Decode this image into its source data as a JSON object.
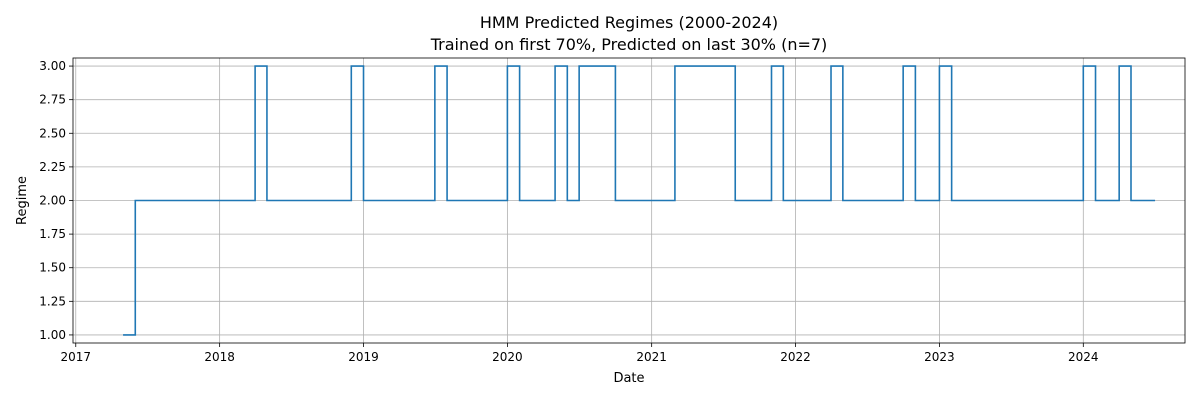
{
  "chart_data": {
    "type": "line",
    "step": "post",
    "title": "HMM Predicted Regimes (2000-2024)",
    "subtitle": "Trained on first 70%, Predicted on last 30% (n=7)",
    "xlabel": "Date",
    "ylabel": "Regime",
    "xlim": [
      "2016-12-25",
      "2024-09-15"
    ],
    "ylim": [
      0.94,
      3.06
    ],
    "x_ticks": [
      "2017",
      "2018",
      "2019",
      "2020",
      "2021",
      "2022",
      "2023",
      "2024"
    ],
    "y_ticks": [
      "1.00",
      "1.25",
      "1.50",
      "1.75",
      "2.00",
      "2.25",
      "2.50",
      "2.75",
      "3.00"
    ],
    "grid": true,
    "series_color": "#1f77b4",
    "series": [
      {
        "x": [
          "2017-05-01",
          "2017-06-01",
          "2018-04-01",
          "2018-05-01",
          "2018-12-01",
          "2019-01-01",
          "2019-07-01",
          "2019-08-01",
          "2020-01-01",
          "2020-02-01",
          "2020-05-01",
          "2020-06-01",
          "2020-07-01",
          "2020-10-01",
          "2021-03-01",
          "2021-08-01",
          "2021-11-01",
          "2021-12-01",
          "2022-04-01",
          "2022-05-01",
          "2022-10-01",
          "2022-11-01",
          "2023-01-01",
          "2023-02-01",
          "2024-01-01",
          "2024-02-01",
          "2024-04-01",
          "2024-05-01",
          "2024-07-01"
        ],
        "values": [
          1,
          2,
          3,
          2,
          3,
          2,
          3,
          2,
          3,
          2,
          3,
          2,
          3,
          2,
          3,
          2,
          3,
          2,
          3,
          2,
          3,
          2,
          3,
          2,
          3,
          2,
          3,
          2,
          2
        ]
      }
    ]
  }
}
